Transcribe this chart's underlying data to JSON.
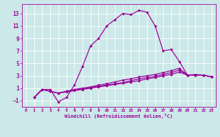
{
  "background_color": "#cce8e8",
  "grid_color": "#ffffff",
  "line_color": "#990099",
  "xlim": [
    -0.5,
    23.5
  ],
  "ylim": [
    -2.0,
    14.5
  ],
  "xticks": [
    0,
    1,
    2,
    3,
    4,
    5,
    6,
    7,
    8,
    9,
    10,
    11,
    12,
    13,
    14,
    15,
    16,
    17,
    18,
    19,
    20,
    21,
    22,
    23
  ],
  "yticks": [
    -1,
    1,
    3,
    5,
    7,
    9,
    11,
    13
  ],
  "xlabel": "Windchill (Refroidissement éolien,°C)",
  "line1_x": [
    1,
    2,
    3,
    4,
    5,
    6,
    7,
    8,
    9,
    10,
    11,
    12,
    13,
    14,
    15,
    16,
    17,
    18,
    19,
    20,
    21,
    22,
    23
  ],
  "line1_y": [
    -0.5,
    0.8,
    0.8,
    -1.2,
    -0.5,
    1.5,
    4.5,
    7.8,
    9.0,
    11.0,
    12.0,
    13.0,
    12.8,
    13.5,
    13.2,
    11.0,
    7.0,
    7.2,
    5.3,
    3.1,
    3.2,
    3.1,
    2.8
  ],
  "line2_x": [
    1,
    2,
    3,
    4,
    5,
    6,
    7,
    8,
    9,
    10,
    11,
    12,
    13,
    14,
    15,
    16,
    17,
    18,
    19,
    20,
    21,
    22,
    23
  ],
  "line2_y": [
    -0.5,
    0.8,
    0.5,
    0.2,
    0.5,
    0.8,
    1.0,
    1.2,
    1.5,
    1.7,
    2.0,
    2.3,
    2.5,
    2.8,
    3.0,
    3.2,
    3.5,
    3.8,
    4.2,
    3.1,
    3.1,
    3.1,
    2.8
  ],
  "line3_x": [
    1,
    2,
    3,
    4,
    5,
    6,
    7,
    8,
    9,
    10,
    11,
    12,
    13,
    14,
    15,
    16,
    17,
    18,
    19,
    20,
    21,
    22,
    23
  ],
  "line3_y": [
    -0.5,
    0.8,
    0.5,
    0.2,
    0.5,
    0.7,
    0.9,
    1.1,
    1.3,
    1.5,
    1.7,
    1.9,
    2.2,
    2.5,
    2.7,
    2.9,
    3.2,
    3.5,
    3.9,
    3.1,
    3.1,
    3.1,
    2.8
  ],
  "line4_x": [
    1,
    2,
    3,
    4,
    5,
    6,
    7,
    8,
    9,
    10,
    11,
    12,
    13,
    14,
    15,
    16,
    17,
    18,
    19,
    20,
    21,
    22,
    23
  ],
  "line4_y": [
    -0.5,
    0.8,
    0.5,
    0.2,
    0.4,
    0.6,
    0.8,
    1.0,
    1.2,
    1.4,
    1.6,
    1.8,
    2.0,
    2.2,
    2.5,
    2.7,
    3.0,
    3.2,
    3.6,
    3.1,
    3.1,
    3.1,
    2.8
  ]
}
